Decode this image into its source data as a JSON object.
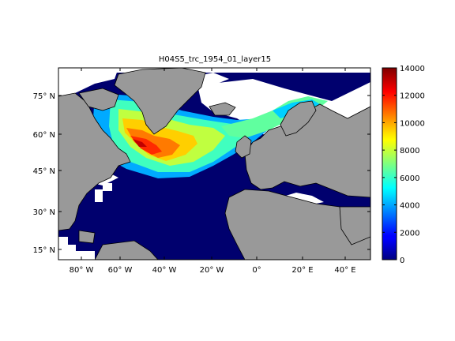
{
  "chart_data": {
    "type": "heatmap",
    "title": "H04S5_trc_1954_01_layer15",
    "lon_ticks": [
      "80° W",
      "60° W",
      "40° W",
      "20° W",
      "0°",
      "20° E",
      "40° E"
    ],
    "lat_ticks": [
      "75° N",
      "60° N",
      "45° N",
      "30° N",
      "15° N"
    ],
    "colorbar": {
      "min": 0,
      "max": 14000,
      "ticks": [
        "0",
        "2000",
        "4000",
        "6000",
        "8000",
        "10000",
        "12000",
        "14000"
      ]
    },
    "colormap": "jet",
    "colors": {
      "land": "#999999",
      "ocean_zero": "#00006e",
      "no_data": "#ffffff"
    }
  }
}
